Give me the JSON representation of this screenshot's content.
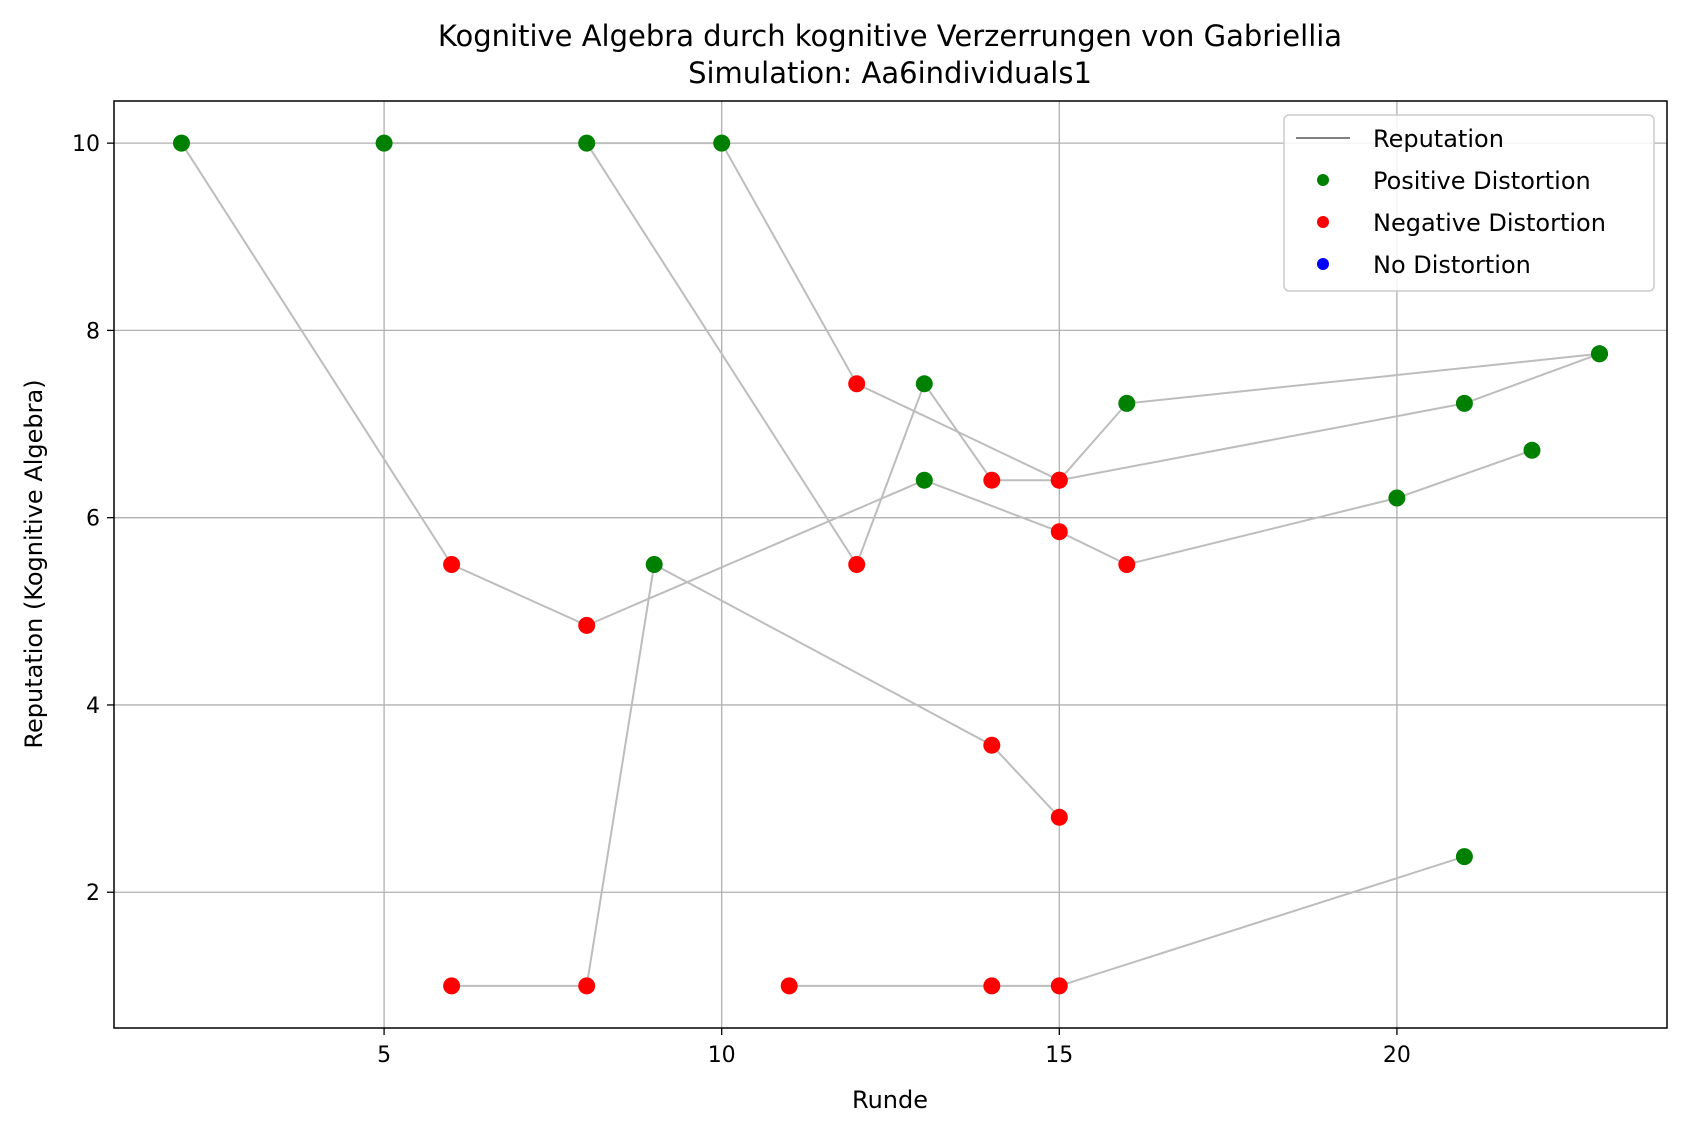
{
  "chart_data": {
    "type": "scatter",
    "title": "Kognitive Algebra durch kognitive Verzerrungen von Gabriellia",
    "subtitle": "Simulation: Aa6individuals1",
    "xlabel": "Runde",
    "ylabel": "Reputation (Kognitive Algebra)",
    "xlim": [
      1,
      24
    ],
    "ylim": [
      0.55,
      10.45
    ],
    "xticks": [
      5,
      10,
      15,
      20
    ],
    "yticks": [
      2,
      4,
      6,
      8,
      10
    ],
    "grid": true,
    "legend": {
      "placement": "top-right",
      "entries": [
        {
          "label": "Reputation",
          "kind": "line",
          "color": "#808080"
        },
        {
          "label": "Positive Distortion",
          "kind": "dot",
          "color": "#008000"
        },
        {
          "label": "Negative Distortion",
          "kind": "dot",
          "color": "#ff0000"
        },
        {
          "label": "No Distortion",
          "kind": "dot",
          "color": "#0000ff"
        }
      ]
    },
    "colors": {
      "positive": "#008000",
      "negative": "#ff0000",
      "none": "#0000ff",
      "line": "#bdbdbd"
    },
    "series": [
      {
        "points": [
          [
            2,
            10,
            "positive"
          ],
          [
            6,
            5.5,
            "negative"
          ],
          [
            8,
            4.85,
            "negative"
          ],
          [
            13,
            6.4,
            "positive"
          ],
          [
            15,
            5.85,
            "negative"
          ],
          [
            16,
            5.5,
            "negative"
          ],
          [
            20,
            6.21,
            "positive"
          ],
          [
            22,
            6.72,
            "positive"
          ]
        ]
      },
      {
        "points": [
          [
            5,
            10,
            "positive"
          ],
          [
            10,
            10,
            "positive"
          ],
          [
            12,
            7.43,
            "negative"
          ],
          [
            15,
            6.4,
            "negative"
          ],
          [
            21,
            7.22,
            "positive"
          ],
          [
            23,
            7.75,
            "positive"
          ]
        ]
      },
      {
        "points": [
          [
            8,
            10,
            "positive"
          ],
          [
            12,
            5.5,
            "negative"
          ],
          [
            13,
            7.43,
            "positive"
          ],
          [
            14,
            6.4,
            "negative"
          ],
          [
            15,
            6.4,
            "negative"
          ],
          [
            16,
            7.22,
            "positive"
          ],
          [
            23,
            7.75,
            "positive"
          ]
        ]
      },
      {
        "points": [
          [
            6,
            1,
            "negative"
          ],
          [
            8,
            1,
            "negative"
          ],
          [
            9,
            5.5,
            "positive"
          ],
          [
            14,
            3.57,
            "negative"
          ],
          [
            15,
            2.8,
            "negative"
          ]
        ]
      },
      {
        "points": [
          [
            11,
            1,
            "negative"
          ],
          [
            14,
            1,
            "negative"
          ],
          [
            15,
            1,
            "negative"
          ],
          [
            21,
            2.38,
            "positive"
          ]
        ]
      }
    ]
  }
}
